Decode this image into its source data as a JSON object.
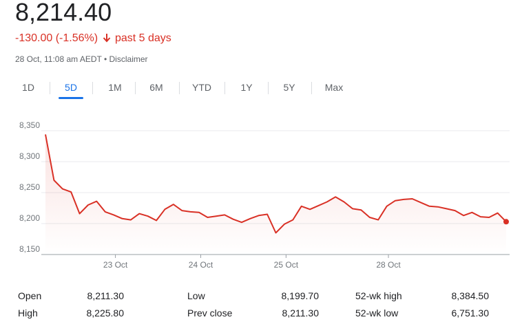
{
  "quote": {
    "price": "8,214.40",
    "change": "-130.00 (-1.56%)",
    "period": "past 5 days",
    "timestamp": "28 Oct, 11:08 am AEDT",
    "separator": "•",
    "disclaimer": "Disclaimer",
    "negative_color": "#d93025"
  },
  "tabs": [
    {
      "label": "1D"
    },
    {
      "label": "5D",
      "active": true
    },
    {
      "label": "1M"
    },
    {
      "label": "6M"
    },
    {
      "label": "YTD"
    },
    {
      "label": "1Y"
    },
    {
      "label": "5Y"
    },
    {
      "label": "Max"
    }
  ],
  "chart_data": {
    "type": "line",
    "line_color": "#d93025",
    "y_ticks": [
      "8,350",
      "8,300",
      "8,250",
      "8,200",
      "8,150"
    ],
    "ylim": [
      8150,
      8350
    ],
    "x_ticks": [
      {
        "label": "23 Oct",
        "index": 8.2
      },
      {
        "label": "24 Oct",
        "index": 18.2
      },
      {
        "label": "25 Oct",
        "index": 28.2
      },
      {
        "label": "28 Oct",
        "index": 40.2
      }
    ],
    "values": [
      8344,
      8270,
      8256,
      8251,
      8216,
      8230,
      8236,
      8219,
      8214,
      8208,
      8206,
      8216,
      8212,
      8205,
      8223,
      8231,
      8221,
      8219,
      8218,
      8210,
      8212,
      8214,
      8207,
      8202,
      8208,
      8213,
      8215,
      8185,
      8199,
      8206,
      8228,
      8223,
      8229,
      8235,
      8243,
      8235,
      8224,
      8222,
      8210,
      8206,
      8228,
      8237,
      8239,
      8240,
      8234,
      8228,
      8227,
      8224,
      8221,
      8213,
      8218,
      8211,
      8210,
      8217,
      8203
    ],
    "grid": "horizontal"
  },
  "stats": {
    "open_label": "Open",
    "open_value": "8,211.30",
    "high_label": "High",
    "high_value": "8,225.80",
    "low_label": "Low",
    "low_value": "8,199.70",
    "prev_close_label": "Prev close",
    "prev_close_value": "8,211.30",
    "wk52_high_label": "52-wk high",
    "wk52_high_value": "8,384.50",
    "wk52_low_label": "52-wk low",
    "wk52_low_value": "6,751.30"
  }
}
